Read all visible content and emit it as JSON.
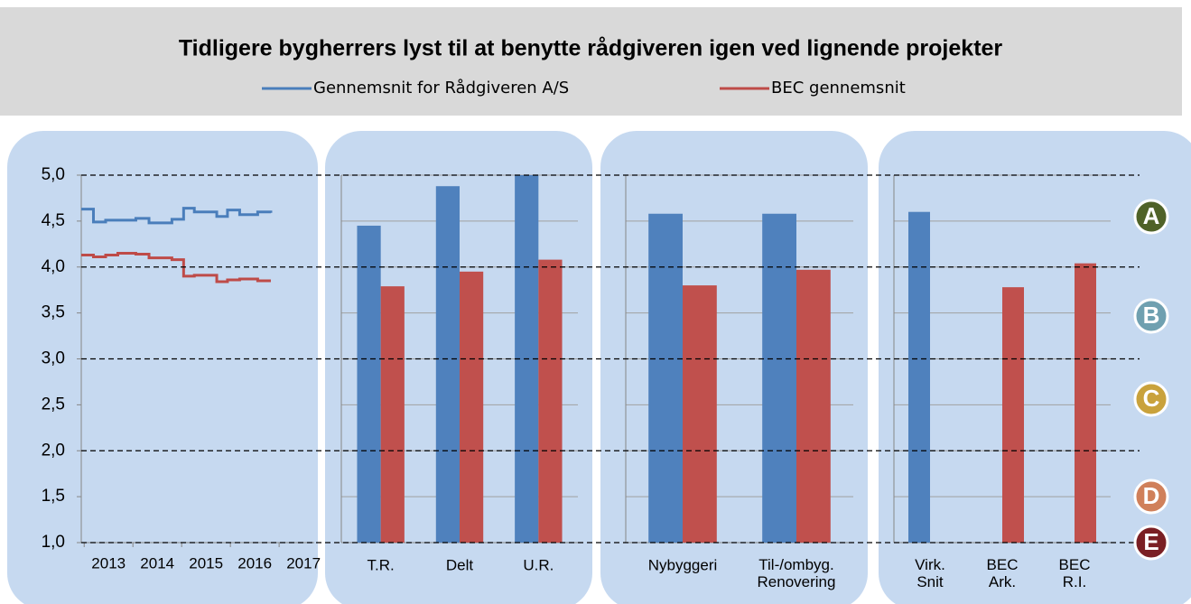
{
  "title": "Tidligere bygherrers lyst til at benytte rådgiveren igen ved lignende projekter",
  "chart_data": [
    {
      "type": "line",
      "step": true,
      "series": [
        {
          "name": "Gennemsnit for Rådgiveren A/S",
          "color": "#4a7ebb",
          "x": [
            2012.44,
            2012.69,
            2012.94,
            2013.56,
            2013.83,
            2014.3,
            2014.54,
            2014.76,
            2015.22,
            2015.44,
            2015.69,
            2016.06,
            2016.33
          ],
          "values": [
            4.63,
            4.49,
            4.51,
            4.53,
            4.48,
            4.52,
            4.64,
            4.6,
            4.55,
            4.62,
            4.57,
            4.6,
            4.59
          ]
        },
        {
          "name": "BEC gennemsnit",
          "color": "#be4b48",
          "x": [
            2012.44,
            2012.69,
            2012.94,
            2013.19,
            2013.56,
            2013.83,
            2014.3,
            2014.54,
            2014.76,
            2015.22,
            2015.44,
            2015.69,
            2016.06,
            2016.33
          ],
          "values": [
            4.13,
            4.11,
            4.13,
            4.15,
            4.14,
            4.1,
            4.08,
            3.9,
            3.91,
            3.84,
            3.86,
            3.87,
            3.85,
            3.85
          ]
        }
      ],
      "xlim": [
        2012.44,
        2017.22
      ],
      "xticks": [
        2013,
        2014,
        2015,
        2016,
        2017
      ],
      "ylim": [
        1,
        5
      ],
      "yticks": [
        {
          "value": 1,
          "label": "1,0"
        },
        {
          "value": 1.5,
          "label": "1,5"
        },
        {
          "value": 2,
          "label": "2,0"
        },
        {
          "value": 2.5,
          "label": "2,5"
        },
        {
          "value": 3,
          "label": "3,0"
        },
        {
          "value": 3.5,
          "label": "3,5"
        },
        {
          "value": 4,
          "label": "4,0"
        },
        {
          "value": 4.5,
          "label": "4,5"
        },
        {
          "value": 5,
          "label": "5,0"
        }
      ],
      "grid": false
    },
    {
      "type": "bar",
      "categories": [
        "T.R.",
        "Delt",
        "U.R."
      ],
      "series": [
        {
          "color": "#4f81bd",
          "values": [
            4.45,
            4.88,
            5.0
          ]
        },
        {
          "color": "#c0504d",
          "values": [
            3.79,
            3.95,
            4.08
          ]
        }
      ],
      "ylim": [
        1,
        5
      ],
      "yticks": [
        1,
        1.5,
        2,
        2.5,
        3,
        3.5,
        4,
        4.5,
        5
      ],
      "grid": true
    },
    {
      "type": "bar",
      "categories": [
        "Nybyggeri",
        "Til-/ombyg.\nRenovering"
      ],
      "series": [
        {
          "color": "#4f81bd",
          "values": [
            4.58,
            4.58
          ]
        },
        {
          "color": "#c0504d",
          "values": [
            3.8,
            3.97
          ]
        }
      ],
      "ylim": [
        1,
        5
      ],
      "yticks": [
        1,
        1.5,
        2,
        2.5,
        3,
        3.5,
        4,
        4.5,
        5
      ],
      "grid": true
    },
    {
      "type": "bar",
      "categories": [
        "Virk.\nSnit",
        "BEC\nArk.",
        "BEC\nR.I."
      ],
      "series": [
        {
          "color": "#4f81bd",
          "values": [
            4.6,
            null,
            null
          ]
        },
        {
          "color": "#c0504d",
          "values": [
            null,
            3.78,
            4.04
          ]
        }
      ],
      "ylim": [
        1,
        5
      ],
      "yticks": [
        1,
        1.5,
        2,
        2.5,
        3,
        3.5,
        4,
        4.5,
        5
      ],
      "grid": true
    }
  ],
  "grades": [
    {
      "letter": "A",
      "color": "#4f6228"
    },
    {
      "letter": "B",
      "color": "#6fa0b0"
    },
    {
      "letter": "C",
      "color": "#c9a23c"
    },
    {
      "letter": "D",
      "color": "#d0805a"
    },
    {
      "letter": "E",
      "color": "#7a1f24"
    }
  ]
}
